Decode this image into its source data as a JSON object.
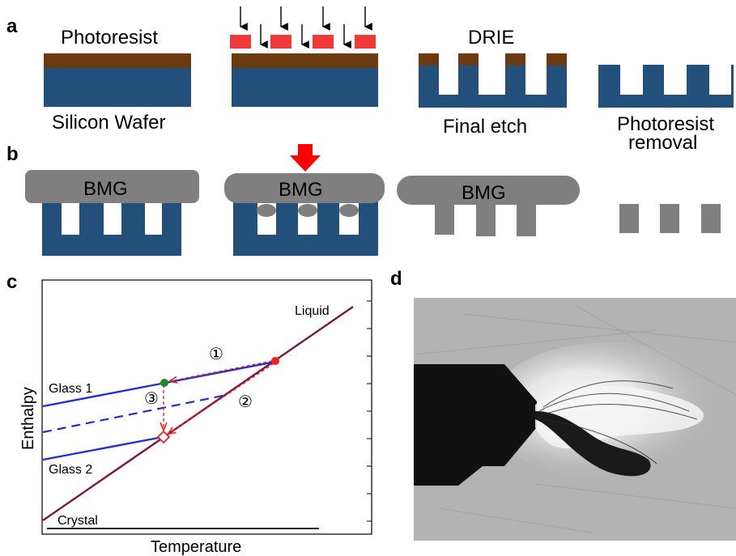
{
  "colors": {
    "silicon": "#23507a",
    "photoresist": "#6b3a10",
    "mask": "#f03a3a",
    "bmg": "#7f7f7f",
    "liquid_line": "#7b1842",
    "glass_line": "#1f2fd6",
    "red_dashed": "#f02020",
    "green_point": "#1a8a1a",
    "red_point": "#f02020"
  },
  "panel_a": {
    "letter": "a",
    "photoresist_label": "Photoresist",
    "wafer_label": "Silicon Wafer",
    "drie_label": "DRIE",
    "final_etch_label": "Final etch",
    "removal_label_line1": "Photoresist",
    "removal_label_line2": "removal"
  },
  "panel_b": {
    "letter": "b",
    "bmg_label": "BMG"
  },
  "panel_c": {
    "letter": "c",
    "x_axis_label": "Temperature",
    "y_axis_label": "Enthalpy",
    "liquid_label": "Liquid",
    "glass1_label": "Glass 1",
    "glass2_label": "Glass 2",
    "crystal_label": "Crystal",
    "step1": "①",
    "step2": "②",
    "step3": "③"
  },
  "panel_d": {
    "letter": "d"
  }
}
